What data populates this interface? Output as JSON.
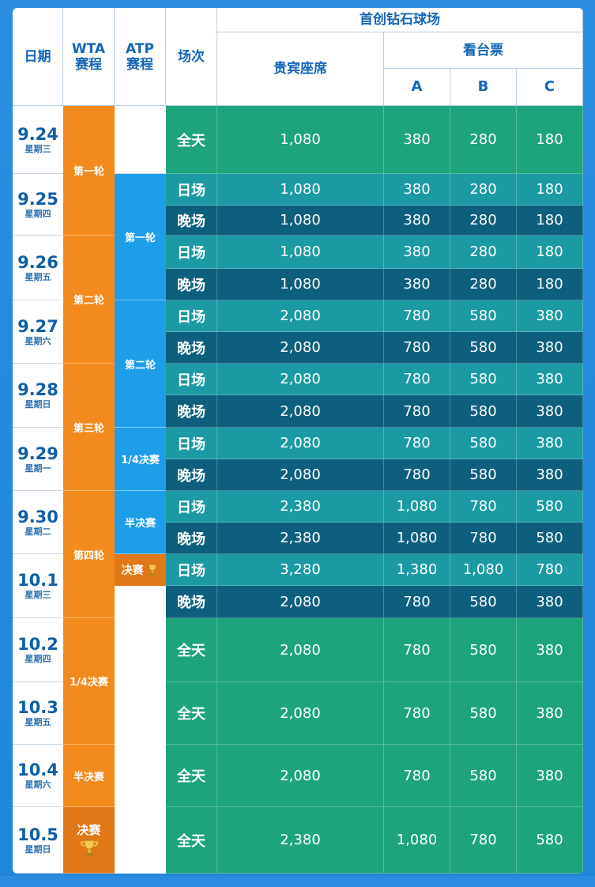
{
  "header": {
    "date": "日期",
    "wta_line1": "WTA",
    "wta_line2": "赛程",
    "atp_line1": "ATP",
    "atp_line2": "赛程",
    "session": "场次",
    "venue": "首创钻石球场",
    "vip": "贵宾座席",
    "stand": "看台票",
    "col_a": "A",
    "col_b": "B",
    "col_c": "C"
  },
  "dates": [
    {
      "day": "9.24",
      "weekday": "星期三"
    },
    {
      "day": "9.25",
      "weekday": "星期四"
    },
    {
      "day": "9.26",
      "weekday": "星期五"
    },
    {
      "day": "9.27",
      "weekday": "星期六"
    },
    {
      "day": "9.28",
      "weekday": "星期日"
    },
    {
      "day": "9.29",
      "weekday": "星期一"
    },
    {
      "day": "9.30",
      "weekday": "星期二"
    },
    {
      "day": "10.1",
      "weekday": "星期三"
    },
    {
      "day": "10.2",
      "weekday": "星期四"
    },
    {
      "day": "10.3",
      "weekday": "星期五"
    },
    {
      "day": "10.4",
      "weekday": "星期六"
    },
    {
      "day": "10.5",
      "weekday": "星期日"
    }
  ],
  "wta_rounds": [
    "第一轮",
    "第二轮",
    "第三轮",
    "第四轮",
    "1/4决赛",
    "半决赛",
    "决赛"
  ],
  "atp_rounds": [
    "第一轮",
    "第二轮",
    "1/4决赛",
    "半决赛",
    "决赛"
  ],
  "rows": [
    {
      "session": "全天",
      "vip": "1,080",
      "a": "380",
      "b": "280",
      "c": "180",
      "type": "full"
    },
    {
      "session": "日场",
      "vip": "1,080",
      "a": "380",
      "b": "280",
      "c": "180",
      "type": "day"
    },
    {
      "session": "晚场",
      "vip": "1,080",
      "a": "380",
      "b": "280",
      "c": "180",
      "type": "night"
    },
    {
      "session": "日场",
      "vip": "1,080",
      "a": "380",
      "b": "280",
      "c": "180",
      "type": "day"
    },
    {
      "session": "晚场",
      "vip": "1,080",
      "a": "380",
      "b": "280",
      "c": "180",
      "type": "night"
    },
    {
      "session": "日场",
      "vip": "2,080",
      "a": "780",
      "b": "580",
      "c": "380",
      "type": "day"
    },
    {
      "session": "晚场",
      "vip": "2,080",
      "a": "780",
      "b": "580",
      "c": "380",
      "type": "night"
    },
    {
      "session": "日场",
      "vip": "2,080",
      "a": "780",
      "b": "580",
      "c": "380",
      "type": "day"
    },
    {
      "session": "晚场",
      "vip": "2,080",
      "a": "780",
      "b": "580",
      "c": "380",
      "type": "night"
    },
    {
      "session": "日场",
      "vip": "2,080",
      "a": "780",
      "b": "580",
      "c": "380",
      "type": "day"
    },
    {
      "session": "晚场",
      "vip": "2,080",
      "a": "780",
      "b": "580",
      "c": "380",
      "type": "night"
    },
    {
      "session": "日场",
      "vip": "2,380",
      "a": "1,080",
      "b": "780",
      "c": "580",
      "type": "day"
    },
    {
      "session": "晚场",
      "vip": "2,380",
      "a": "1,080",
      "b": "780",
      "c": "580",
      "type": "night"
    },
    {
      "session": "日场",
      "vip": "3,280",
      "a": "1,380",
      "b": "1,080",
      "c": "780",
      "type": "day"
    },
    {
      "session": "晚场",
      "vip": "2,080",
      "a": "780",
      "b": "580",
      "c": "380",
      "type": "night"
    },
    {
      "session": "全天",
      "vip": "2,080",
      "a": "780",
      "b": "580",
      "c": "380",
      "type": "full"
    },
    {
      "session": "全天",
      "vip": "2,080",
      "a": "780",
      "b": "580",
      "c": "380",
      "type": "full"
    },
    {
      "session": "全天",
      "vip": "2,080",
      "a": "780",
      "b": "580",
      "c": "380",
      "type": "full"
    },
    {
      "session": "全天",
      "vip": "2,380",
      "a": "1,080",
      "b": "780",
      "c": "580",
      "type": "full"
    }
  ],
  "colors": {
    "full": "#1ea47c",
    "day": "#1b9aa3",
    "night": "#0e5f7d",
    "wta": "#f28a1e",
    "atp": "#1e9de8",
    "header_text": "#1466b8"
  }
}
